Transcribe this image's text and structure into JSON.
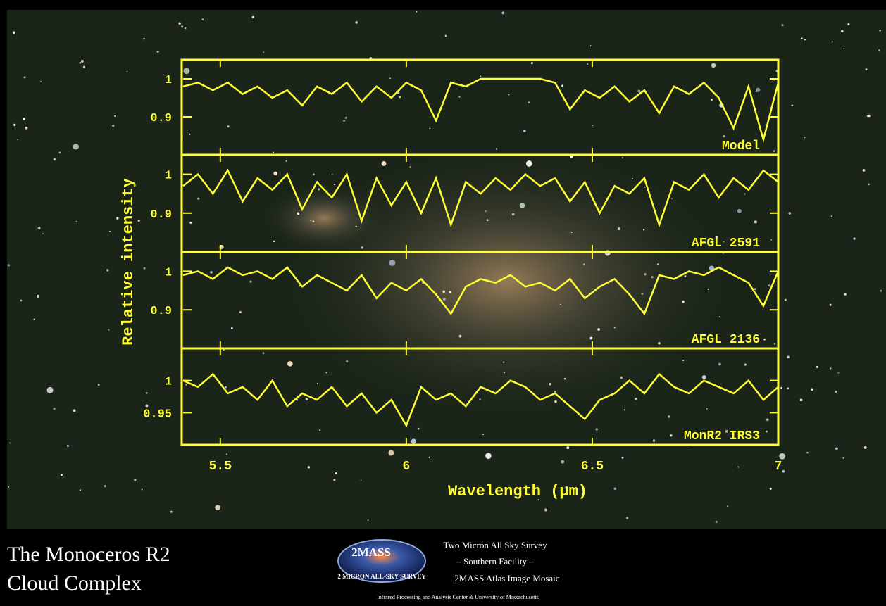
{
  "chart_data": [
    {
      "type": "line",
      "ylabel": "Relative intensity",
      "ylim": [
        0.8,
        1.05
      ],
      "yticks": [
        0.9,
        1
      ],
      "x": [
        5.4,
        5.44,
        5.48,
        5.52,
        5.56,
        5.6,
        5.64,
        5.68,
        5.72,
        5.76,
        5.8,
        5.84,
        5.88,
        5.92,
        5.96,
        6.0,
        6.04,
        6.08,
        6.12,
        6.16,
        6.2,
        6.24,
        6.28,
        6.32,
        6.36,
        6.4,
        6.44,
        6.48,
        6.52,
        6.56,
        6.6,
        6.64,
        6.68,
        6.72,
        6.76,
        6.8,
        6.84,
        6.88,
        6.92,
        6.96,
        7.0
      ],
      "series": [
        {
          "name": "Model",
          "color": "#ffff33",
          "values": [
            0.98,
            0.99,
            0.97,
            0.99,
            0.96,
            0.98,
            0.95,
            0.97,
            0.93,
            0.98,
            0.96,
            0.99,
            0.94,
            0.98,
            0.95,
            0.99,
            0.97,
            0.89,
            0.99,
            0.98,
            1.0,
            1.0,
            1.0,
            1.0,
            1.0,
            0.99,
            0.92,
            0.97,
            0.95,
            0.98,
            0.94,
            0.97,
            0.91,
            0.98,
            0.96,
            0.99,
            0.95,
            0.87,
            0.98,
            0.84,
            0.99
          ]
        }
      ]
    },
    {
      "type": "line",
      "ylim": [
        0.8,
        1.05
      ],
      "yticks": [
        0.9,
        1
      ],
      "x": [
        5.4,
        5.44,
        5.48,
        5.52,
        5.56,
        5.6,
        5.64,
        5.68,
        5.72,
        5.76,
        5.8,
        5.84,
        5.88,
        5.92,
        5.96,
        6.0,
        6.04,
        6.08,
        6.12,
        6.16,
        6.2,
        6.24,
        6.28,
        6.32,
        6.36,
        6.4,
        6.44,
        6.48,
        6.52,
        6.56,
        6.6,
        6.64,
        6.68,
        6.72,
        6.76,
        6.8,
        6.84,
        6.88,
        6.92,
        6.96,
        7.0
      ],
      "series": [
        {
          "name": "AFGL 2591",
          "color": "#ffff33",
          "values": [
            0.97,
            1.0,
            0.95,
            1.01,
            0.93,
            0.99,
            0.96,
            1.0,
            0.91,
            0.98,
            0.94,
            1.0,
            0.88,
            0.99,
            0.92,
            0.98,
            0.9,
            0.99,
            0.87,
            0.98,
            0.95,
            0.99,
            0.96,
            1.0,
            0.97,
            0.99,
            0.93,
            0.98,
            0.9,
            0.97,
            0.95,
            0.99,
            0.87,
            0.98,
            0.96,
            1.0,
            0.94,
            0.99,
            0.96,
            1.01,
            0.98
          ]
        }
      ]
    },
    {
      "type": "line",
      "ylim": [
        0.8,
        1.05
      ],
      "yticks": [
        0.9,
        1
      ],
      "x": [
        5.4,
        5.44,
        5.48,
        5.52,
        5.56,
        5.6,
        5.64,
        5.68,
        5.72,
        5.76,
        5.8,
        5.84,
        5.88,
        5.92,
        5.96,
        6.0,
        6.04,
        6.08,
        6.12,
        6.16,
        6.2,
        6.24,
        6.28,
        6.32,
        6.36,
        6.4,
        6.44,
        6.48,
        6.52,
        6.56,
        6.6,
        6.64,
        6.68,
        6.72,
        6.76,
        6.8,
        6.84,
        6.88,
        6.92,
        6.96,
        7.0
      ],
      "series": [
        {
          "name": "AFGL 2136",
          "color": "#ffff33",
          "values": [
            0.99,
            1.0,
            0.98,
            1.01,
            0.99,
            1.0,
            0.98,
            1.01,
            0.96,
            0.99,
            0.97,
            0.95,
            0.99,
            0.93,
            0.97,
            0.95,
            0.98,
            0.94,
            0.89,
            0.96,
            0.98,
            0.97,
            0.99,
            0.96,
            0.97,
            0.95,
            0.98,
            0.93,
            0.96,
            0.98,
            0.94,
            0.89,
            0.99,
            0.98,
            1.0,
            0.99,
            1.01,
            0.99,
            0.97,
            0.91,
            1.0
          ]
        }
      ]
    },
    {
      "type": "line",
      "ylim": [
        0.9,
        1.05
      ],
      "yticks": [
        0.95,
        1
      ],
      "xlabel": "Wavelength (μm)",
      "xlim": [
        5.4,
        7
      ],
      "xticks": [
        5.5,
        6,
        6.5,
        7
      ],
      "x": [
        5.4,
        5.44,
        5.48,
        5.52,
        5.56,
        5.6,
        5.64,
        5.68,
        5.72,
        5.76,
        5.8,
        5.84,
        5.88,
        5.92,
        5.96,
        6.0,
        6.04,
        6.08,
        6.12,
        6.16,
        6.2,
        6.24,
        6.28,
        6.32,
        6.36,
        6.4,
        6.44,
        6.48,
        6.52,
        6.56,
        6.6,
        6.64,
        6.68,
        6.72,
        6.76,
        6.8,
        6.84,
        6.88,
        6.92,
        6.96,
        7.0
      ],
      "series": [
        {
          "name": "MonR2 IRS3",
          "color": "#ffff33",
          "values": [
            1.0,
            0.99,
            1.01,
            0.98,
            0.99,
            0.97,
            1.0,
            0.96,
            0.98,
            0.97,
            0.99,
            0.96,
            0.98,
            0.95,
            0.97,
            0.93,
            0.99,
            0.97,
            0.98,
            0.96,
            0.99,
            0.98,
            1.0,
            0.99,
            0.97,
            0.98,
            0.96,
            0.94,
            0.97,
            0.98,
            1.0,
            0.98,
            1.01,
            0.99,
            0.98,
            1.0,
            0.99,
            0.98,
            1.0,
            0.97,
            0.99
          ]
        }
      ]
    }
  ],
  "caption": {
    "title": [
      "The Monoceros R2",
      "Cloud Complex"
    ],
    "logo": "2MASS",
    "logo_ring": "2 MICRON ALL-SKY SURVEY",
    "credits": [
      "Two Micron All Sky Survey",
      "– Southern Facility –",
      "2MASS Atlas Image Mosaic"
    ],
    "institution": "Infrared Processing and Analysis Center & University of Massachusetts"
  }
}
